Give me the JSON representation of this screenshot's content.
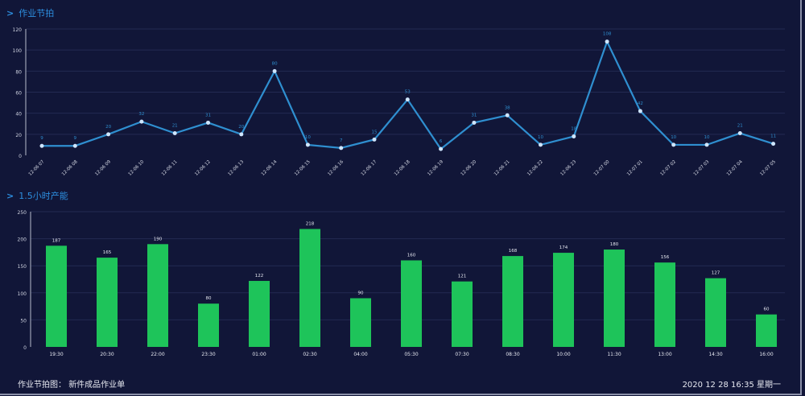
{
  "colors": {
    "background": "#111638",
    "line": "#2f8fd0",
    "bar": "#1ec45a",
    "title": "#2d8fe0"
  },
  "chart_data": [
    {
      "type": "line",
      "title": "作业节拍",
      "ylim": [
        0,
        120
      ],
      "yticks": [
        0,
        20,
        40,
        60,
        80,
        100,
        120
      ],
      "grid": true,
      "categories": [
        "12-06 07",
        "12-06 08",
        "12-06 09",
        "12-06 10",
        "12-06 11",
        "12-06 12",
        "12-06 13",
        "12-06 14",
        "12-06 15",
        "12-06 16",
        "12-06 17",
        "12-06 18",
        "12-06 19",
        "12-06 20",
        "12-06 21",
        "12-06 22",
        "12-06 23",
        "12-07 00",
        "12-07 01",
        "12-07 02",
        "12-07 03",
        "12-07 04",
        "12-07 05"
      ],
      "values": [
        9,
        9,
        20,
        32,
        21,
        31,
        20,
        80,
        10,
        7,
        15,
        53,
        6,
        31,
        38,
        10,
        18,
        108,
        42,
        10,
        10,
        21,
        11
      ]
    },
    {
      "type": "bar",
      "title": "1.5小时产能",
      "ylim": [
        0,
        250
      ],
      "yticks": [
        0,
        50,
        100,
        150,
        200,
        250
      ],
      "grid": true,
      "categories": [
        "19:30",
        "20:30",
        "22:00",
        "23:30",
        "01:00",
        "02:30",
        "04:00",
        "05:30",
        "07:30",
        "08:30",
        "10:00",
        "11:30",
        "13:00",
        "14:30",
        "16:00"
      ],
      "values": [
        187,
        165,
        190,
        80,
        122,
        218,
        90,
        160,
        121,
        168,
        174,
        180,
        156,
        127,
        60
      ]
    }
  ],
  "footer": {
    "label": "作业节拍图：",
    "value": "新件成品作业单",
    "datetime": "2020 12 28 16:35 星期一"
  }
}
